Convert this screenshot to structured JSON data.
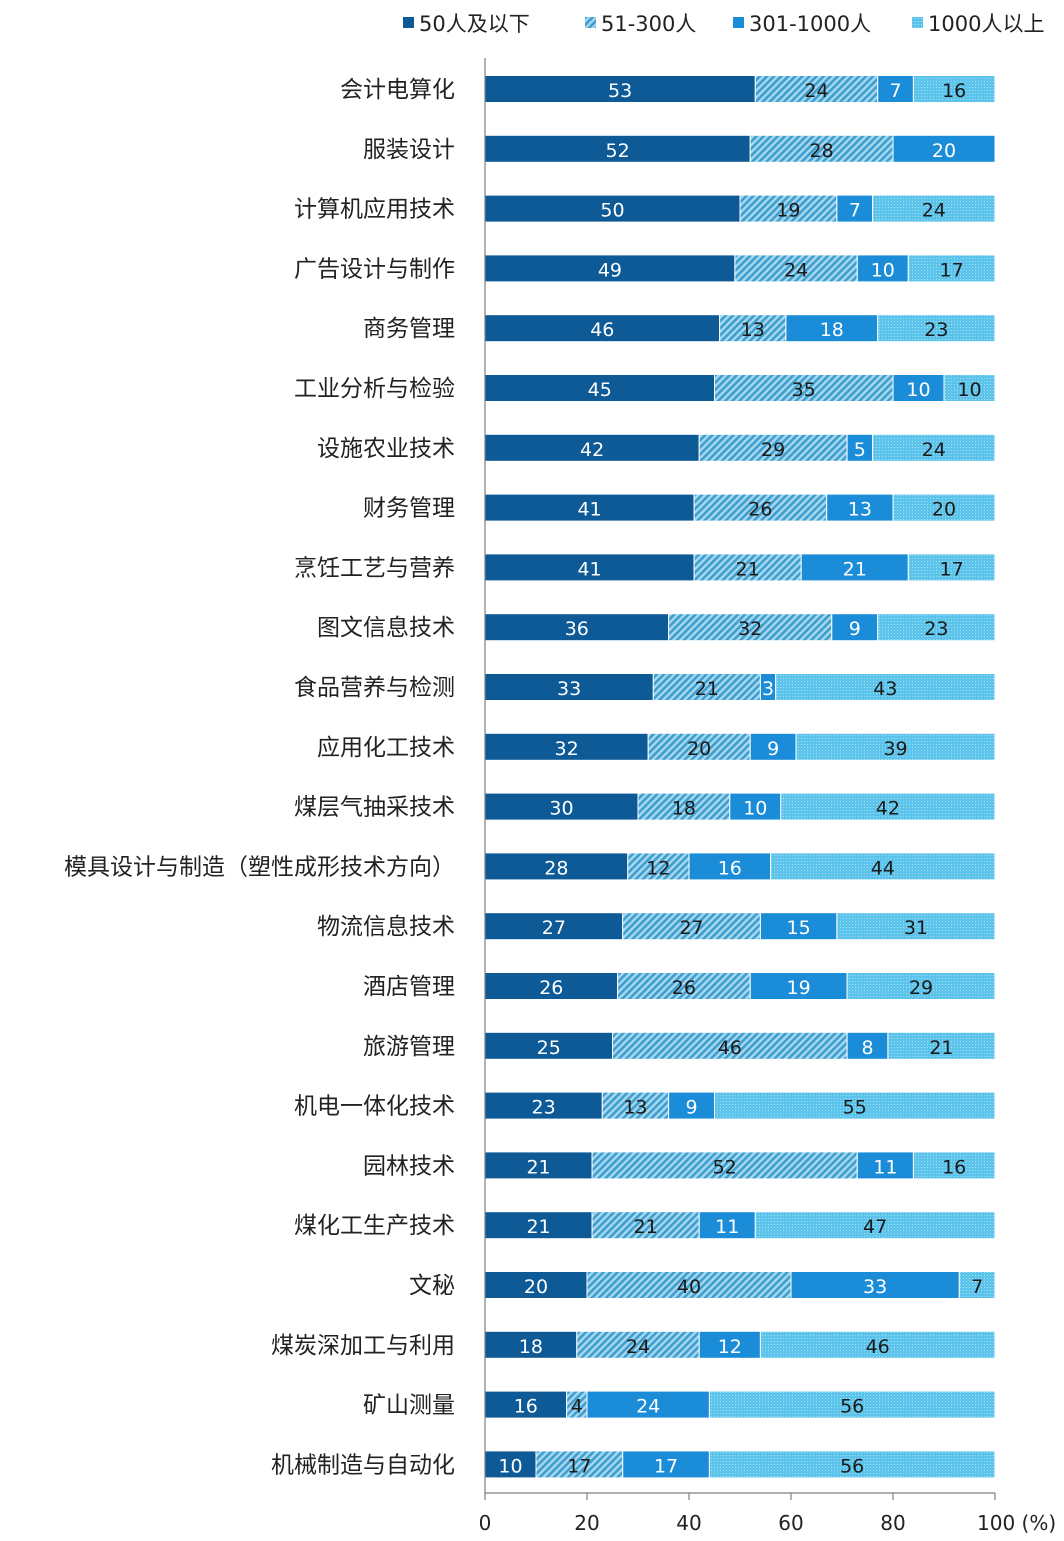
{
  "chart_data": {
    "type": "bar",
    "orientation": "horizontal",
    "stacked": true,
    "percent_stacked": true,
    "categories": [
      "会计电算化",
      "服装设计",
      "计算机应用技术",
      "广告设计与制作",
      "商务管理",
      "工业分析与检验",
      "设施农业技术",
      "财务管理",
      "烹饪工艺与营养",
      "图文信息技术",
      "食品营养与检测",
      "应用化工技术",
      "煤层气抽采技术",
      "模具设计与制造（塑性成形技术方向）",
      "物流信息技术",
      "酒店管理",
      "旅游管理",
      "机电一体化技术",
      "园林技术",
      "煤化工生产技术",
      "文秘",
      "煤炭深加工与利用",
      "矿山测量",
      "机械制造与自动化"
    ],
    "series": [
      {
        "name": "50人及以下",
        "color": "#0d5a97",
        "pattern": "solid",
        "label_color": "#ffffff",
        "values": [
          53,
          52,
          50,
          49,
          46,
          45,
          42,
          41,
          41,
          36,
          33,
          32,
          30,
          28,
          27,
          26,
          25,
          23,
          21,
          21,
          20,
          18,
          16,
          10
        ]
      },
      {
        "name": "51-300人",
        "color": "#3c9fd0",
        "pattern": "hatched",
        "label_color": "#1a1a1a",
        "values": [
          24,
          28,
          19,
          24,
          13,
          35,
          29,
          26,
          21,
          32,
          21,
          20,
          18,
          12,
          27,
          26,
          46,
          13,
          52,
          21,
          40,
          24,
          4,
          17
        ]
      },
      {
        "name": "301-1000人",
        "color": "#1a8cd8",
        "pattern": "solid",
        "label_color": "#ffffff",
        "values": [
          7,
          20,
          7,
          10,
          18,
          10,
          5,
          13,
          21,
          9,
          3,
          9,
          10,
          16,
          15,
          19,
          8,
          9,
          11,
          11,
          33,
          12,
          24,
          17
        ]
      },
      {
        "name": "1000人以上",
        "color": "#5cc3ea",
        "pattern": "dotted",
        "label_color": "#1a1a1a",
        "values": [
          16,
          0,
          24,
          17,
          23,
          10,
          24,
          20,
          17,
          23,
          43,
          39,
          42,
          44,
          31,
          29,
          21,
          55,
          16,
          47,
          7,
          46,
          56,
          56
        ]
      }
    ],
    "xlim": [
      0,
      100
    ],
    "xticks": [
      0,
      20,
      40,
      60,
      80,
      100
    ],
    "xtick_labels": [
      "0",
      "20",
      "40",
      "60",
      "80",
      "100 (%)"
    ],
    "legend_position": "top",
    "grid": false,
    "title": "",
    "xlabel": "",
    "ylabel": ""
  }
}
